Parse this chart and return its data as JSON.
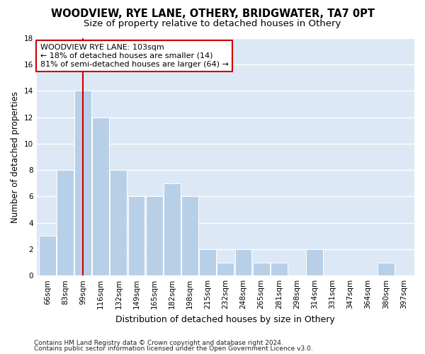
{
  "title": "WOODVIEW, RYE LANE, OTHERY, BRIDGWATER, TA7 0PT",
  "subtitle": "Size of property relative to detached houses in Othery",
  "xlabel": "Distribution of detached houses by size in Othery",
  "ylabel": "Number of detached properties",
  "categories": [
    "66sqm",
    "83sqm",
    "99sqm",
    "116sqm",
    "132sqm",
    "149sqm",
    "165sqm",
    "182sqm",
    "198sqm",
    "215sqm",
    "232sqm",
    "248sqm",
    "265sqm",
    "281sqm",
    "298sqm",
    "314sqm",
    "331sqm",
    "347sqm",
    "364sqm",
    "380sqm",
    "397sqm"
  ],
  "values": [
    3,
    8,
    14,
    12,
    8,
    6,
    6,
    7,
    6,
    2,
    1,
    2,
    1,
    1,
    0,
    2,
    0,
    0,
    0,
    1,
    0
  ],
  "bar_color": "#b8cfe8",
  "bar_edge_color": "#ffffff",
  "vline_x_index": 2,
  "vline_color": "#cc0000",
  "annotation_line1": "WOODVIEW RYE LANE: 103sqm",
  "annotation_line2": "← 18% of detached houses are smaller (14)",
  "annotation_line3": "81% of semi-detached houses are larger (64) →",
  "annotation_box_color": "#ffffff",
  "annotation_box_edge_color": "#cc0000",
  "ylim": [
    0,
    18
  ],
  "yticks": [
    0,
    2,
    4,
    6,
    8,
    10,
    12,
    14,
    16,
    18
  ],
  "plot_bg_color": "#dce8f5",
  "fig_bg_color": "#ffffff",
  "grid_color": "#ffffff",
  "footer_line1": "Contains HM Land Registry data © Crown copyright and database right 2024.",
  "footer_line2": "Contains public sector information licensed under the Open Government Licence v3.0.",
  "title_fontsize": 10.5,
  "subtitle_fontsize": 9.5,
  "xlabel_fontsize": 9,
  "ylabel_fontsize": 8.5,
  "tick_fontsize": 7.5,
  "annotation_fontsize": 8,
  "footer_fontsize": 6.5
}
